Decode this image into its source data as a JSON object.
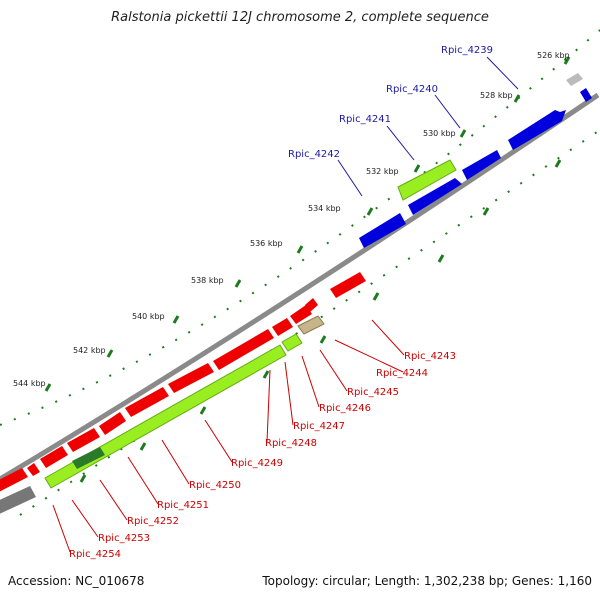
{
  "title": "Ralstonia pickettii 12J chromosome 2, complete sequence",
  "footer": {
    "accession": "Accession: NC_010678",
    "summary": "Topology: circular; Length: 1,302,238 bp; Genes: 1,160"
  },
  "colors": {
    "forward_gene": "#0000dd",
    "reverse_gene": "#ee0000",
    "forward_label": "#1a1aa6",
    "reverse_label": "#cc0000",
    "tick": "#1e7a1e",
    "backbone": "#8a8a8a",
    "feature_highlight": "#99ee22",
    "feature_dark": "#2a7a2a",
    "feature_tan": "#c8b48a",
    "feature_gray": "#777777"
  },
  "ticks": [
    "526 kbp",
    "528 kbp",
    "530 kbp",
    "532 kbp",
    "534 kbp",
    "536 kbp",
    "538 kbp",
    "540 kbp",
    "542 kbp",
    "544 kbp"
  ],
  "forward_labels": [
    "Rpic_4239",
    "Rpic_4240",
    "Rpic_4241",
    "Rpic_4242"
  ],
  "reverse_labels": [
    "Rpic_4243",
    "Rpic_4244",
    "Rpic_4245",
    "Rpic_4246",
    "Rpic_4247",
    "Rpic_4248",
    "Rpic_4249",
    "Rpic_4250",
    "Rpic_4251",
    "Rpic_4252",
    "Rpic_4253",
    "Rpic_4254"
  ]
}
